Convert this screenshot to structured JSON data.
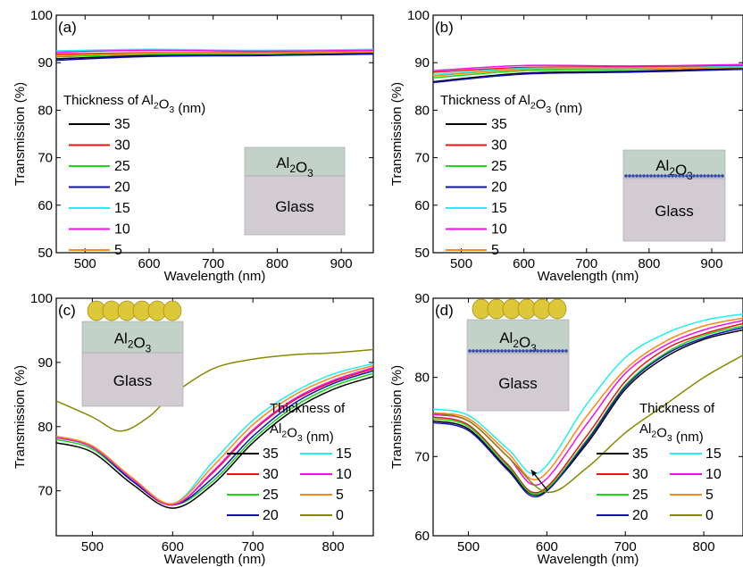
{
  "colors": {
    "35": "#000000",
    "30": "#ee1111",
    "25": "#11dd11",
    "20": "#1111bb",
    "15": "#22eeee",
    "10": "#ee11ee",
    "5": "#ff8811",
    "0": "#888800",
    "al2o3_layer": "#c2d2c8",
    "glass_layer": "#d3cbd2",
    "layer_text": "#800080",
    "au_particle": "#dcc838",
    "ag_dots": "#3344aa"
  },
  "chart_data": [
    {
      "type": "line",
      "panel_label": "(a)",
      "xlabel": "Wavelength (nm)",
      "ylabel": "Transmission (%)",
      "xlim": [
        455,
        950
      ],
      "ylim": [
        50,
        100
      ],
      "xticks": [
        500,
        600,
        700,
        800,
        900
      ],
      "yticks": [
        50,
        60,
        70,
        80,
        90,
        100
      ],
      "legend_title": "Thickness of Al2O3 (nm)",
      "legend_placement": "left",
      "inset_layers": [
        "Al2O3",
        "Glass"
      ],
      "series": [
        {
          "name": "35",
          "x": [
            455,
            600,
            775,
            950
          ],
          "y": [
            90.8,
            91.5,
            91.6,
            92.0
          ]
        },
        {
          "name": "30",
          "x": [
            455,
            600,
            775,
            950
          ],
          "y": [
            91.8,
            92.1,
            92.1,
            92.3
          ]
        },
        {
          "name": "25",
          "x": [
            455,
            600,
            775,
            950
          ],
          "y": [
            91.2,
            91.8,
            91.9,
            92.2
          ]
        },
        {
          "name": "20",
          "x": [
            455,
            600,
            775,
            950
          ],
          "y": [
            90.5,
            91.3,
            91.5,
            91.8
          ]
        },
        {
          "name": "15",
          "x": [
            455,
            600,
            775,
            950
          ],
          "y": [
            92.5,
            92.8,
            92.6,
            92.8
          ]
        },
        {
          "name": "10",
          "x": [
            455,
            600,
            775,
            950
          ],
          "y": [
            92.2,
            92.6,
            92.4,
            92.6
          ]
        },
        {
          "name": "5",
          "x": [
            455,
            600,
            775,
            950
          ],
          "y": [
            91.5,
            92.0,
            92.0,
            92.3
          ]
        }
      ]
    },
    {
      "type": "line",
      "panel_label": "(b)",
      "xlabel": "Wavelength (nm)",
      "ylabel": "Transmission (%)",
      "xlim": [
        455,
        950
      ],
      "ylim": [
        50,
        100
      ],
      "xticks": [
        500,
        600,
        700,
        800,
        900
      ],
      "yticks": [
        50,
        60,
        70,
        80,
        90,
        100
      ],
      "legend_title": "Thickness of Al2O3 (nm)",
      "legend_placement": "left",
      "inset_layers": [
        "Al2O3",
        "Glass"
      ],
      "series": [
        {
          "name": "35",
          "x": [
            455,
            600,
            775,
            950
          ],
          "y": [
            86.0,
            87.8,
            88.2,
            88.8
          ]
        },
        {
          "name": "30",
          "x": [
            455,
            600,
            775,
            950
          ],
          "y": [
            88.0,
            89.0,
            89.1,
            89.4
          ]
        },
        {
          "name": "25",
          "x": [
            455,
            600,
            775,
            950
          ],
          "y": [
            86.8,
            88.3,
            88.6,
            89.0
          ]
        },
        {
          "name": "20",
          "x": [
            455,
            600,
            775,
            950
          ],
          "y": [
            85.8,
            87.6,
            88.0,
            88.6
          ]
        },
        {
          "name": "15",
          "x": [
            455,
            600,
            775,
            950
          ],
          "y": [
            87.5,
            88.8,
            88.9,
            89.2
          ]
        },
        {
          "name": "10",
          "x": [
            455,
            600,
            775,
            950
          ],
          "y": [
            88.3,
            89.4,
            89.3,
            89.6
          ]
        },
        {
          "name": "5",
          "x": [
            455,
            600,
            775,
            950
          ],
          "y": [
            87.2,
            88.6,
            88.7,
            89.0
          ]
        }
      ]
    },
    {
      "type": "line",
      "panel_label": "(c)",
      "xlabel": "Wavelength (nm)",
      "ylabel": "Transmission (%)",
      "xlim": [
        455,
        850
      ],
      "ylim": [
        63,
        100
      ],
      "xticks": [
        500,
        600,
        700,
        800
      ],
      "yticks": [
        70,
        80,
        90,
        100
      ],
      "legend_title": "Thickness of Al2O3 (nm)",
      "legend_placement": "bottom-right",
      "inset_layers": [
        "Al2O3",
        "Glass"
      ],
      "series": [
        {
          "name": "35",
          "x": [
            455,
            500,
            550,
            600,
            650,
            700,
            750,
            800,
            850
          ],
          "y": [
            77.5,
            76.0,
            71.0,
            67.3,
            71.0,
            77.5,
            82.5,
            85.8,
            87.8
          ]
        },
        {
          "name": "30",
          "x": [
            455,
            500,
            550,
            600,
            650,
            700,
            750,
            800,
            850
          ],
          "y": [
            78.3,
            76.8,
            71.5,
            67.8,
            72.8,
            79.3,
            84.0,
            87.0,
            89.0
          ]
        },
        {
          "name": "25",
          "x": [
            455,
            500,
            550,
            600,
            650,
            700,
            750,
            800,
            850
          ],
          "y": [
            78.0,
            76.5,
            71.5,
            67.8,
            71.5,
            78.0,
            83.0,
            86.3,
            88.3
          ]
        },
        {
          "name": "20",
          "x": [
            455,
            500,
            550,
            600,
            650,
            700,
            750,
            800,
            850
          ],
          "y": [
            78.3,
            76.8,
            71.5,
            67.8,
            72.0,
            78.5,
            83.5,
            86.7,
            88.7
          ]
        },
        {
          "name": "15",
          "x": [
            455,
            500,
            550,
            600,
            650,
            700,
            750,
            800,
            850
          ],
          "y": [
            78.5,
            77.0,
            72.0,
            68.0,
            74.5,
            81.0,
            85.3,
            88.2,
            89.8
          ]
        },
        {
          "name": "10",
          "x": [
            455,
            500,
            550,
            600,
            650,
            700,
            750,
            800,
            850
          ],
          "y": [
            78.3,
            76.8,
            71.8,
            67.8,
            73.0,
            79.5,
            84.2,
            87.2,
            89.2
          ]
        },
        {
          "name": "5",
          "x": [
            455,
            500,
            550,
            600,
            650,
            700,
            750,
            800,
            850
          ],
          "y": [
            78.5,
            77.0,
            72.0,
            68.0,
            73.8,
            80.3,
            84.8,
            87.7,
            89.5
          ]
        },
        {
          "name": "0",
          "x": [
            455,
            500,
            535,
            570,
            600,
            650,
            700,
            750,
            800,
            850
          ],
          "y": [
            84.0,
            81.5,
            79.3,
            81.5,
            85.0,
            89.0,
            90.5,
            91.2,
            91.5,
            92.0
          ]
        }
      ]
    },
    {
      "type": "line",
      "panel_label": "(d)",
      "xlabel": "Wavelength (nm)",
      "ylabel": "Transmission (%)",
      "xlim": [
        455,
        850
      ],
      "ylim": [
        60,
        90
      ],
      "xticks": [
        500,
        600,
        700,
        800
      ],
      "yticks": [
        60,
        70,
        80,
        90
      ],
      "legend_title": "Thickness of Al2O3 (nm)",
      "legend_placement": "bottom-right",
      "inset_layers": [
        "Al2O3",
        "Glass"
      ],
      "series": [
        {
          "name": "35",
          "x": [
            455,
            500,
            550,
            590,
            650,
            700,
            750,
            800,
            850
          ],
          "y": [
            74.5,
            73.5,
            68.5,
            65.2,
            71.5,
            78.5,
            82.5,
            84.8,
            86.0
          ]
        },
        {
          "name": "30",
          "x": [
            455,
            500,
            550,
            590,
            650,
            700,
            750,
            800,
            850
          ],
          "y": [
            75.0,
            74.0,
            69.0,
            65.5,
            72.5,
            79.5,
            83.5,
            85.5,
            86.8
          ]
        },
        {
          "name": "25",
          "x": [
            455,
            500,
            550,
            590,
            650,
            700,
            750,
            800,
            850
          ],
          "y": [
            74.8,
            73.8,
            68.8,
            65.3,
            72.0,
            79.0,
            83.0,
            85.3,
            86.5
          ]
        },
        {
          "name": "20",
          "x": [
            455,
            500,
            550,
            590,
            650,
            700,
            750,
            800,
            850
          ],
          "y": [
            74.3,
            73.3,
            68.3,
            65.0,
            71.8,
            78.8,
            82.8,
            85.0,
            86.3
          ]
        },
        {
          "name": "15",
          "x": [
            455,
            500,
            550,
            590,
            650,
            700,
            750,
            800,
            850
          ],
          "y": [
            76.0,
            75.2,
            71.0,
            68.0,
            76.5,
            82.5,
            85.5,
            87.2,
            88.0
          ]
        },
        {
          "name": "10",
          "x": [
            455,
            500,
            550,
            590,
            650,
            700,
            750,
            800,
            850
          ],
          "y": [
            75.3,
            74.5,
            70.0,
            66.5,
            74.0,
            80.5,
            84.0,
            86.0,
            87.2
          ]
        },
        {
          "name": "5",
          "x": [
            455,
            500,
            550,
            590,
            650,
            700,
            750,
            800,
            850
          ],
          "y": [
            75.5,
            74.8,
            70.5,
            67.2,
            75.0,
            81.0,
            84.5,
            86.5,
            87.5
          ]
        },
        {
          "name": "0",
          "x": [
            455,
            500,
            550,
            600,
            650,
            700,
            750,
            800,
            850
          ],
          "y": [
            75.5,
            74.5,
            70.0,
            65.5,
            68.5,
            73.0,
            76.5,
            80.0,
            82.8
          ]
        }
      ],
      "arrow": {
        "from": [
          600,
          65.8
        ],
        "to": [
          580,
          68.3
        ]
      }
    }
  ]
}
